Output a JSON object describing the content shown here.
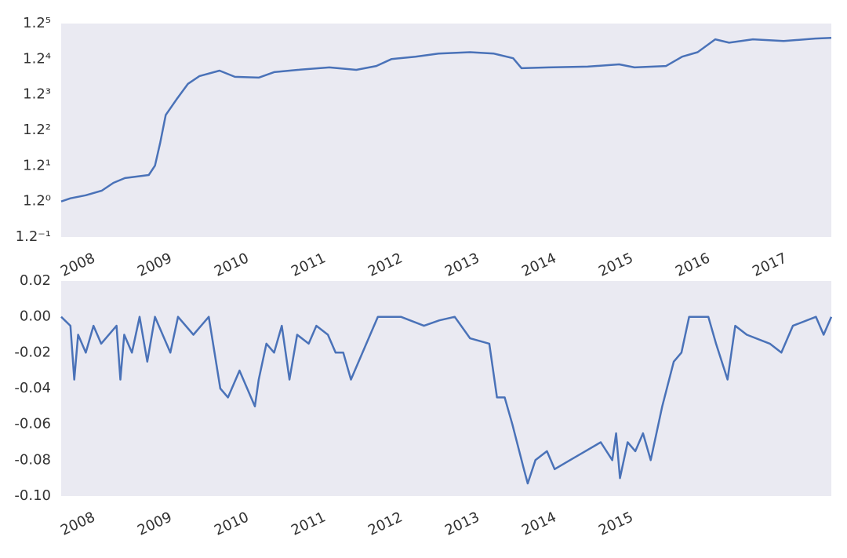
{
  "chart_data": [
    {
      "type": "line",
      "log_y": true,
      "grid": false,
      "color": "#4a72b8",
      "x": [
        2007.78,
        2007.9,
        2008.1,
        2008.31,
        2008.46,
        2008.61,
        2008.92,
        2009.0,
        2009.07,
        2009.14,
        2009.28,
        2009.43,
        2009.58,
        2009.84,
        2010.04,
        2010.35,
        2010.55,
        2010.86,
        2011.27,
        2011.62,
        2011.88,
        2012.08,
        2012.39,
        2012.69,
        2013.1,
        2013.41,
        2013.66,
        2013.77,
        2014.12,
        2014.63,
        2015.04,
        2015.24,
        2015.65,
        2015.86,
        2016.06,
        2016.29,
        2016.47,
        2016.78,
        2017.18,
        2017.59,
        2017.8
      ],
      "values": [
        1.0,
        1.016,
        1.032,
        1.057,
        1.1,
        1.127,
        1.145,
        1.201,
        1.354,
        1.557,
        1.686,
        1.827,
        1.901,
        1.955,
        1.894,
        1.886,
        1.94,
        1.963,
        1.987,
        1.963,
        2.002,
        2.075,
        2.1,
        2.133,
        2.149,
        2.133,
        2.083,
        1.979,
        1.987,
        1.995,
        2.019,
        1.987,
        2.002,
        2.1,
        2.149,
        2.295,
        2.256,
        2.295,
        2.275,
        2.304,
        2.312
      ],
      "xlim": [
        2007.78,
        2017.8
      ],
      "xticks": [
        2008,
        2009,
        2010,
        2011,
        2012,
        2013,
        2014,
        2015,
        2016,
        2017
      ],
      "ylim": [
        0.8333,
        2.48832
      ],
      "yticks": [
        {
          "value": 0.8333,
          "label": "1.2⁻¹"
        },
        {
          "value": 1,
          "label": "1.2⁰"
        },
        {
          "value": 1.2,
          "label": "1.2¹"
        },
        {
          "value": 1.44,
          "label": "1.2²"
        },
        {
          "value": 1.728,
          "label": "1.2³"
        },
        {
          "value": 2.0736,
          "label": "1.2⁴"
        },
        {
          "value": 2.48832,
          "label": "1.2⁵"
        }
      ]
    },
    {
      "type": "line",
      "log_y": false,
      "grid": false,
      "color": "#4a72b8",
      "x": [
        2007.78,
        2007.9,
        2007.95,
        2008.0,
        2008.1,
        2008.2,
        2008.3,
        2008.5,
        2008.55,
        2008.6,
        2008.7,
        2008.8,
        2008.9,
        2009.0,
        2009.2,
        2009.3,
        2009.5,
        2009.7,
        2009.85,
        2009.95,
        2010.1,
        2010.2,
        2010.3,
        2010.35,
        2010.45,
        2010.55,
        2010.65,
        2010.75,
        2010.85,
        2011.0,
        2011.1,
        2011.25,
        2011.35,
        2011.45,
        2011.55,
        2011.65,
        2011.8,
        2011.9,
        2012.2,
        2012.5,
        2012.7,
        2012.9,
        2013.1,
        2013.35,
        2013.45,
        2013.55,
        2013.65,
        2013.8,
        2013.85,
        2013.95,
        2014.1,
        2014.2,
        2014.4,
        2014.6,
        2014.8,
        2014.95,
        2015.0,
        2015.05,
        2015.15,
        2015.25,
        2015.35,
        2015.45,
        2015.6,
        2015.75,
        2015.85,
        2015.95,
        2016.2,
        2016.3,
        2016.45,
        2016.55,
        2016.7,
        2017.0,
        2017.15,
        2017.3,
        2017.6,
        2017.7,
        2017.8
      ],
      "values": [
        0,
        -0.005,
        -0.035,
        -0.01,
        -0.02,
        -0.005,
        -0.015,
        -0.005,
        -0.035,
        -0.01,
        -0.02,
        0,
        -0.025,
        0,
        -0.02,
        0,
        -0.01,
        0,
        -0.04,
        -0.045,
        -0.03,
        -0.04,
        -0.05,
        -0.035,
        -0.015,
        -0.02,
        -0.005,
        -0.035,
        -0.01,
        -0.015,
        -0.005,
        -0.01,
        -0.02,
        -0.02,
        -0.035,
        -0.025,
        -0.01,
        0,
        0,
        -0.005,
        -0.002,
        0,
        -0.012,
        -0.015,
        -0.045,
        -0.045,
        -0.06,
        -0.085,
        -0.093,
        -0.08,
        -0.075,
        -0.085,
        -0.08,
        -0.075,
        -0.07,
        -0.08,
        -0.065,
        -0.09,
        -0.07,
        -0.075,
        -0.065,
        -0.08,
        -0.05,
        -0.025,
        -0.02,
        0,
        0,
        -0.015,
        -0.035,
        -0.005,
        -0.01,
        -0.015,
        -0.02,
        -0.005,
        0,
        -0.01,
        0
      ],
      "xlim": [
        2007.78,
        2017.8
      ],
      "xticks": [
        2008,
        2009,
        2010,
        2011,
        2012,
        2013,
        2014,
        2015
      ],
      "ylim": [
        -0.1,
        0.02
      ],
      "yticks": [
        {
          "value": -0.1,
          "label": "-0.10"
        },
        -0.08,
        -0.06,
        -0.04,
        -0.02,
        {
          "value": 0,
          "label": "0.00"
        },
        0.02
      ]
    }
  ]
}
